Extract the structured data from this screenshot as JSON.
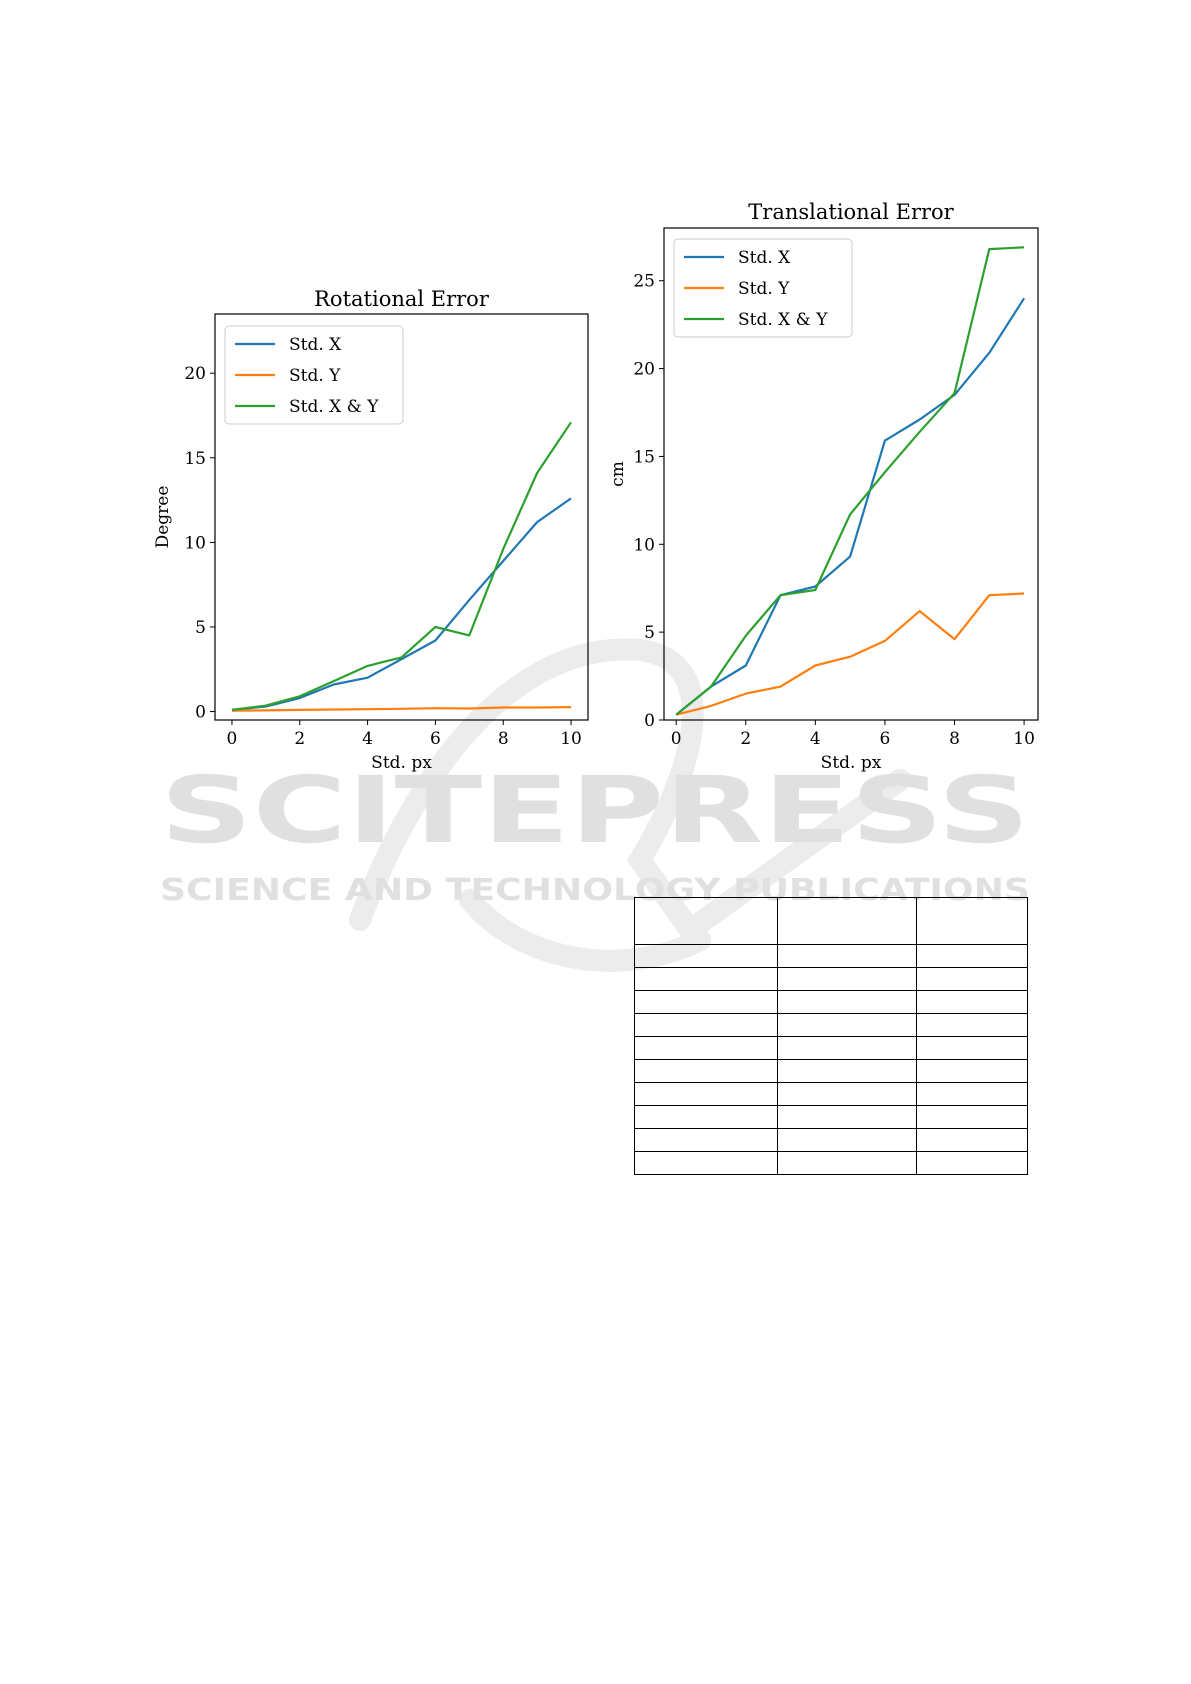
{
  "watermark": {
    "word": "SCITEPRESS",
    "tagline": "SCIENCE AND TECHNOLOGY PUBLICATIONS"
  },
  "colors": {
    "std_x": "#1f77b4",
    "std_y": "#ff7f0e",
    "std_xy": "#2ca02c",
    "watermark": "#e0e0e0"
  },
  "chart_data": [
    {
      "type": "line",
      "title": "Rotational Error",
      "xlabel": "Std. px",
      "ylabel": "Degree",
      "xlim": [
        -0.5,
        10.5
      ],
      "ylim": [
        -0.5,
        23.5
      ],
      "xticks": [
        0,
        2,
        4,
        6,
        8,
        10
      ],
      "yticks": [
        0,
        5,
        10,
        15,
        20
      ],
      "legend_position": "top-left",
      "grid": false,
      "x": [
        0,
        1,
        2,
        3,
        4,
        5,
        6,
        7,
        8,
        9,
        10
      ],
      "series": [
        {
          "name": "Std. X",
          "color": "#1f77b4",
          "values": [
            0.1,
            0.3,
            0.8,
            1.6,
            2.0,
            3.1,
            4.2,
            6.6,
            8.9,
            11.2,
            12.6
          ]
        },
        {
          "name": "Std. Y",
          "color": "#ff7f0e",
          "values": [
            0.05,
            0.07,
            0.1,
            0.12,
            0.14,
            0.16,
            0.2,
            0.18,
            0.24,
            0.24,
            0.26
          ]
        },
        {
          "name": "Std. X & Y",
          "color": "#2ca02c",
          "values": [
            0.1,
            0.35,
            0.9,
            1.8,
            2.7,
            3.2,
            5.0,
            4.5,
            9.6,
            14.1,
            17.1
          ]
        }
      ]
    },
    {
      "type": "line",
      "title": "Translational Error",
      "xlabel": "Std. px",
      "ylabel": "cm",
      "xlim": [
        -0.35,
        10.4
      ],
      "ylim": [
        0,
        28
      ],
      "xticks": [
        0,
        2,
        4,
        6,
        8,
        10
      ],
      "yticks": [
        0,
        5,
        10,
        15,
        20,
        25
      ],
      "legend_position": "top-left",
      "grid": false,
      "x": [
        0,
        1,
        2,
        3,
        4,
        5,
        6,
        7,
        8,
        9,
        10
      ],
      "series": [
        {
          "name": "Std. X",
          "color": "#1f77b4",
          "values": [
            0.3,
            1.9,
            3.1,
            7.1,
            7.6,
            9.3,
            15.9,
            17.1,
            18.5,
            20.9,
            24.0
          ]
        },
        {
          "name": "Std. Y",
          "color": "#ff7f0e",
          "values": [
            0.3,
            0.8,
            1.5,
            1.9,
            3.1,
            3.6,
            4.5,
            6.2,
            4.6,
            7.1,
            7.2
          ]
        },
        {
          "name": "Std. X & Y",
          "color": "#2ca02c",
          "values": [
            0.3,
            1.9,
            4.8,
            7.1,
            7.4,
            11.7,
            14.1,
            16.4,
            18.6,
            26.8,
            26.9
          ]
        }
      ]
    }
  ]
}
